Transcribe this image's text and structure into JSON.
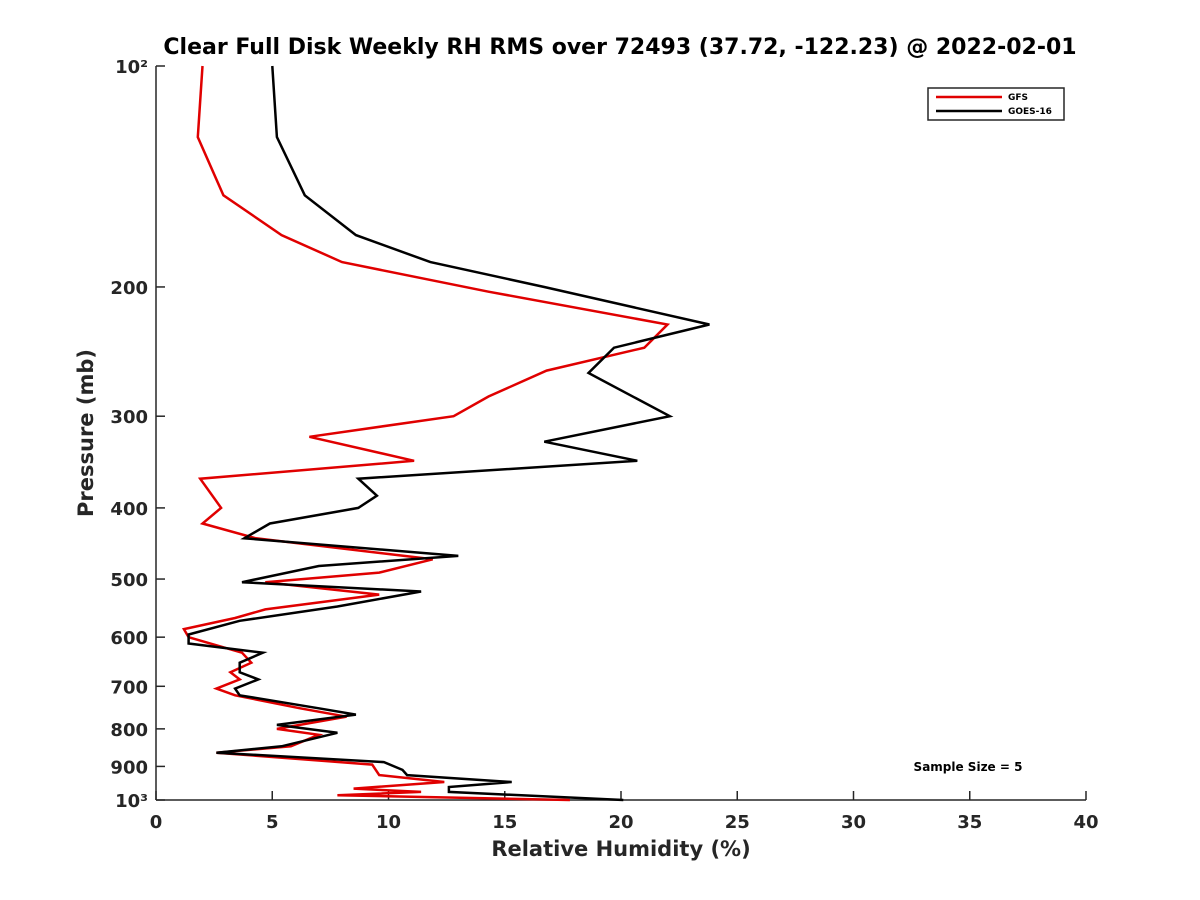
{
  "chart_data": {
    "type": "line",
    "title": "Clear Full Disk Weekly RH RMS over 72493 (37.72, -122.23) @ 2022-02-01",
    "xlabel": "Relative Humidity (%)",
    "ylabel": "Pressure (mb)",
    "xlim": [
      0,
      40
    ],
    "ylim": [
      100,
      1000
    ],
    "y_scale": "log",
    "y_reversed": true,
    "x_ticks": [
      0,
      5,
      10,
      15,
      20,
      25,
      30,
      35,
      40
    ],
    "x_tick_labels": [
      "0",
      "5",
      "10",
      "15",
      "20",
      "25",
      "30",
      "35",
      "40"
    ],
    "y_ticks": [
      100,
      200,
      300,
      400,
      500,
      600,
      700,
      800,
      900,
      1000
    ],
    "y_tick_labels": [
      "10²",
      "200",
      "300",
      "400",
      "500",
      "600",
      "700",
      "800",
      "900",
      "10³"
    ],
    "grid": false,
    "legend_position": "top-right",
    "annotation": "Sample Size = 5",
    "series": [
      {
        "name": "GFS",
        "color": "#e00000",
        "points": [
          [
            2.0,
            100
          ],
          [
            1.8,
            125
          ],
          [
            2.9,
            150
          ],
          [
            5.4,
            170
          ],
          [
            8.0,
            185
          ],
          [
            14.3,
            203
          ],
          [
            22.0,
            225
          ],
          [
            21.0,
            242
          ],
          [
            16.8,
            260
          ],
          [
            14.3,
            282
          ],
          [
            12.8,
            300
          ],
          [
            6.6,
            320
          ],
          [
            11.1,
            345
          ],
          [
            1.9,
            365
          ],
          [
            2.8,
            400
          ],
          [
            2.0,
            420
          ],
          [
            4.3,
            440
          ],
          [
            11.9,
            470
          ],
          [
            9.6,
            490
          ],
          [
            4.7,
            505
          ],
          [
            9.6,
            525
          ],
          [
            4.7,
            550
          ],
          [
            3.4,
            565
          ],
          [
            1.2,
            585
          ],
          [
            1.4,
            600
          ],
          [
            3.7,
            630
          ],
          [
            4.1,
            650
          ],
          [
            3.2,
            670
          ],
          [
            3.6,
            685
          ],
          [
            2.6,
            705
          ],
          [
            3.4,
            720
          ],
          [
            6.2,
            750
          ],
          [
            8.2,
            770
          ],
          [
            5.2,
            800
          ],
          [
            7.0,
            815
          ],
          [
            5.8,
            845
          ],
          [
            2.6,
            862
          ],
          [
            9.3,
            895
          ],
          [
            9.6,
            925
          ],
          [
            12.4,
            945
          ],
          [
            8.5,
            965
          ],
          [
            11.4,
            975
          ],
          [
            7.8,
            985
          ],
          [
            17.8,
            1000
          ]
        ]
      },
      {
        "name": "GOES-16",
        "color": "#000000",
        "points": [
          [
            5.0,
            100
          ],
          [
            5.2,
            125
          ],
          [
            6.4,
            150
          ],
          [
            8.6,
            170
          ],
          [
            11.8,
            185
          ],
          [
            16.7,
            200
          ],
          [
            23.8,
            225
          ],
          [
            19.7,
            242
          ],
          [
            18.6,
            262
          ],
          [
            22.1,
            300
          ],
          [
            16.7,
            325
          ],
          [
            20.7,
            345
          ],
          [
            8.7,
            365
          ],
          [
            9.5,
            385
          ],
          [
            8.7,
            400
          ],
          [
            4.9,
            420
          ],
          [
            3.8,
            440
          ],
          [
            13.0,
            465
          ],
          [
            7.0,
            480
          ],
          [
            3.7,
            505
          ],
          [
            11.4,
            520
          ],
          [
            7.8,
            545
          ],
          [
            3.6,
            570
          ],
          [
            1.4,
            595
          ],
          [
            1.4,
            612
          ],
          [
            4.6,
            630
          ],
          [
            3.6,
            650
          ],
          [
            3.6,
            670
          ],
          [
            4.4,
            685
          ],
          [
            3.4,
            705
          ],
          [
            3.6,
            720
          ],
          [
            7.0,
            750
          ],
          [
            8.6,
            765
          ],
          [
            5.2,
            790
          ],
          [
            7.8,
            810
          ],
          [
            5.4,
            845
          ],
          [
            2.6,
            862
          ],
          [
            9.8,
            888
          ],
          [
            10.6,
            910
          ],
          [
            10.8,
            925
          ],
          [
            15.3,
            945
          ],
          [
            12.6,
            960
          ],
          [
            12.6,
            975
          ],
          [
            20.1,
            1000
          ]
        ]
      }
    ]
  }
}
